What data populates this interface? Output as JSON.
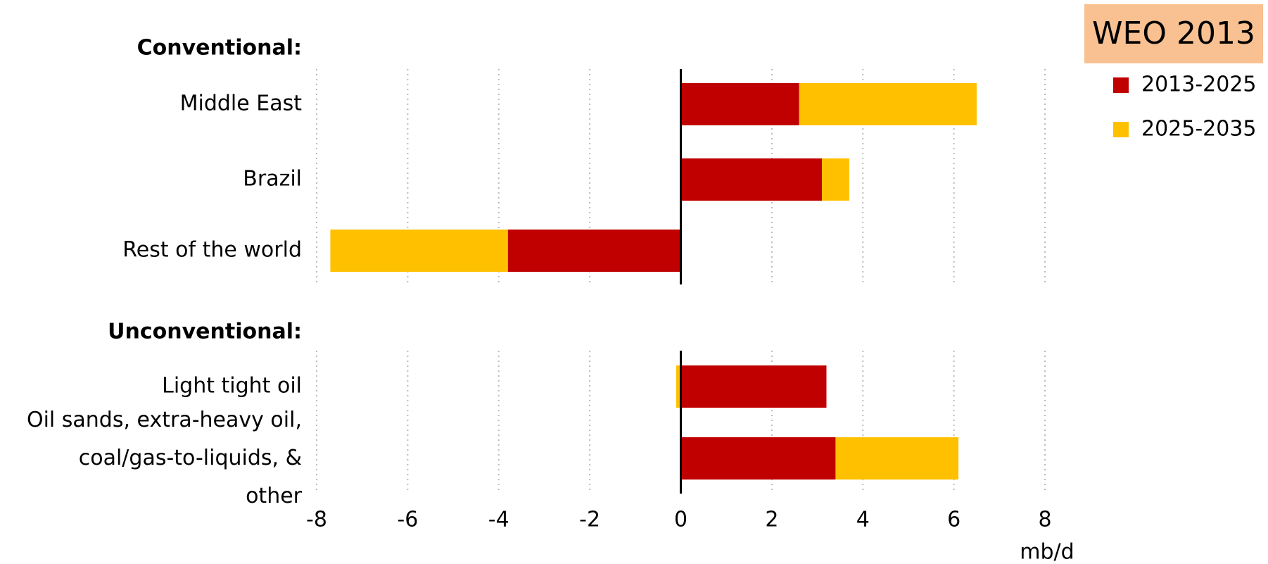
{
  "chart_data": {
    "type": "bar",
    "orientation": "horizontal",
    "stacked": true,
    "groups": [
      {
        "label": "Conventional:",
        "categories": [
          "Middle East",
          "Brazil",
          "Rest of the world"
        ]
      },
      {
        "label": "Unconventional:",
        "categories": [
          "Light tight oil",
          "Oil sands, extra-heavy oil, coal/gas-to-liquids, & other"
        ]
      }
    ],
    "series": [
      {
        "name": "2013-2025",
        "color": "#c00000",
        "values": [
          2.6,
          3.1,
          -3.8,
          3.2,
          3.4
        ]
      },
      {
        "name": "2025-2035",
        "color": "#ffc000",
        "values": [
          3.9,
          0.6,
          -3.9,
          -0.1,
          2.7
        ]
      }
    ],
    "xlim": [
      -8,
      8
    ],
    "xticks": [
      -8,
      -6,
      -4,
      -2,
      0,
      2,
      4,
      6,
      8
    ],
    "xlabel": "mb/d",
    "legend_title": "WEO 2013",
    "legend": "upper right",
    "grid": true
  }
}
